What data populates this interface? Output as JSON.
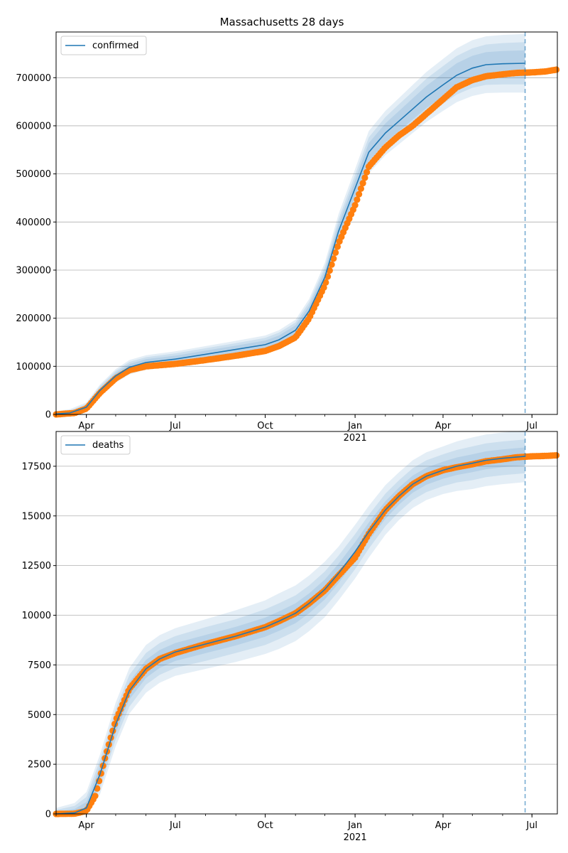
{
  "title": "Massachusetts 28 days",
  "colors": {
    "model": "#1f77b4",
    "observed": "#ff7f0e",
    "band": "#1f77b4",
    "grid": "#b0b0b0"
  },
  "chart_data": [
    {
      "type": "line",
      "title": "Massachusetts 28 days",
      "legend": {
        "entries": [
          "confirmed"
        ],
        "placement": "top-left"
      },
      "grid": "y",
      "xlim": [
        "2020-03-01",
        "2021-07-27"
      ],
      "ylim": [
        0,
        795000
      ],
      "x_ticks": [
        {
          "date": "2020-04-01",
          "label": "Apr"
        },
        {
          "date": "2020-07-01",
          "label": "Jul"
        },
        {
          "date": "2020-10-01",
          "label": "Oct"
        },
        {
          "date": "2021-01-01",
          "label": "Jan",
          "sublabel": "2021"
        },
        {
          "date": "2021-04-01",
          "label": "Apr"
        },
        {
          "date": "2021-07-01",
          "label": "Jul"
        }
      ],
      "y_ticks": [
        0,
        100000,
        200000,
        300000,
        400000,
        500000,
        600000,
        700000
      ],
      "forecast_date": "2021-06-24",
      "series": [
        {
          "name": "confirmed",
          "kind": "model",
          "x": [
            "2020-03-01",
            "2020-03-15",
            "2020-04-01",
            "2020-04-15",
            "2020-05-01",
            "2020-05-15",
            "2020-06-01",
            "2020-07-01",
            "2020-08-01",
            "2020-09-01",
            "2020-10-01",
            "2020-10-15",
            "2020-11-01",
            "2020-11-15",
            "2020-12-01",
            "2020-12-15",
            "2021-01-01",
            "2021-01-15",
            "2021-02-01",
            "2021-02-15",
            "2021-03-01",
            "2021-03-15",
            "2021-04-01",
            "2021-04-15",
            "2021-05-01",
            "2021-05-15",
            "2021-06-01",
            "2021-06-24"
          ],
          "y": [
            1000,
            3000,
            15000,
            50000,
            80000,
            98000,
            108000,
            115000,
            125000,
            135000,
            145000,
            155000,
            175000,
            215000,
            285000,
            380000,
            470000,
            545000,
            585000,
            610000,
            635000,
            660000,
            685000,
            705000,
            720000,
            727000,
            729000,
            730000
          ],
          "band_1": [
            6000,
            8000,
            10000,
            12000,
            14000,
            15000,
            15000,
            16000,
            17000,
            18000,
            19000,
            20000,
            22000,
            25000,
            30000,
            36000,
            40000,
            44000,
            46000,
            48000,
            50000,
            52000,
            54000,
            56000,
            58000,
            59000,
            60000,
            61000
          ],
          "band_2": [
            4000,
            5000,
            7000,
            9000,
            10000,
            11000,
            11000,
            12000,
            12500,
            13000,
            14000,
            15000,
            16000,
            18000,
            21000,
            25000,
            28000,
            31000,
            33000,
            35000,
            36000,
            38000,
            39000,
            40000,
            41000,
            42000,
            43000,
            44000
          ],
          "band_3": [
            2000,
            3000,
            4000,
            5000,
            6000,
            6500,
            7000,
            7000,
            7500,
            8000,
            8500,
            9000,
            10000,
            11000,
            13000,
            15000,
            17000,
            19000,
            20000,
            21000,
            22000,
            23000,
            24000,
            25000,
            25500,
            26000,
            26500,
            27000
          ]
        },
        {
          "name": "observed",
          "kind": "observed",
          "x": [
            "2020-03-01",
            "2020-03-20",
            "2020-04-01",
            "2020-04-15",
            "2020-05-01",
            "2020-05-15",
            "2020-06-01",
            "2020-07-01",
            "2020-08-01",
            "2020-09-01",
            "2020-10-01",
            "2020-10-15",
            "2020-11-01",
            "2020-11-15",
            "2020-12-01",
            "2020-12-15",
            "2021-01-01",
            "2021-01-15",
            "2021-02-01",
            "2021-02-15",
            "2021-03-01",
            "2021-03-15",
            "2021-04-01",
            "2021-04-15",
            "2021-05-01",
            "2021-05-15",
            "2021-06-01",
            "2021-06-15",
            "2021-07-01",
            "2021-07-15",
            "2021-07-27"
          ],
          "y": [
            0,
            3000,
            12000,
            45000,
            75000,
            92000,
            100000,
            105000,
            113000,
            122000,
            132000,
            142000,
            160000,
            200000,
            268000,
            355000,
            435000,
            515000,
            555000,
            580000,
            600000,
            625000,
            655000,
            680000,
            695000,
            703000,
            707000,
            710000,
            711000,
            713000,
            717000
          ]
        }
      ]
    },
    {
      "type": "line",
      "title": "",
      "legend": {
        "entries": [
          "deaths"
        ],
        "placement": "top-left"
      },
      "grid": "y",
      "xlim": [
        "2020-03-01",
        "2021-07-27"
      ],
      "ylim": [
        0,
        19250
      ],
      "x_ticks": [
        {
          "date": "2020-04-01",
          "label": "Apr"
        },
        {
          "date": "2020-07-01",
          "label": "Jul"
        },
        {
          "date": "2020-10-01",
          "label": "Oct"
        },
        {
          "date": "2021-01-01",
          "label": "Jan",
          "sublabel": "2021"
        },
        {
          "date": "2021-04-01",
          "label": "Apr"
        },
        {
          "date": "2021-07-01",
          "label": "Jul"
        }
      ],
      "y_ticks": [
        0,
        2500,
        5000,
        7500,
        10000,
        12500,
        15000,
        17500
      ],
      "forecast_date": "2021-06-24",
      "series": [
        {
          "name": "deaths",
          "kind": "model",
          "x": [
            "2020-03-01",
            "2020-03-20",
            "2020-04-01",
            "2020-04-15",
            "2020-05-01",
            "2020-05-15",
            "2020-06-01",
            "2020-06-15",
            "2020-07-01",
            "2020-08-01",
            "2020-09-01",
            "2020-10-01",
            "2020-10-15",
            "2020-11-01",
            "2020-11-15",
            "2020-12-01",
            "2020-12-15",
            "2021-01-01",
            "2021-01-15",
            "2021-02-01",
            "2021-02-15",
            "2021-03-01",
            "2021-03-15",
            "2021-04-01",
            "2021-04-15",
            "2021-05-01",
            "2021-05-15",
            "2021-06-01",
            "2021-06-24"
          ],
          "y": [
            0,
            50,
            300,
            2000,
            4500,
            6200,
            7300,
            7800,
            8150,
            8550,
            8950,
            9400,
            9700,
            10100,
            10600,
            11300,
            12100,
            13200,
            14200,
            15300,
            16000,
            16600,
            17000,
            17300,
            17500,
            17650,
            17800,
            17900,
            18000
          ],
          "band_1": [
            300,
            500,
            800,
            1000,
            1100,
            1150,
            1200,
            1200,
            1200,
            1250,
            1300,
            1350,
            1400,
            1400,
            1400,
            1400,
            1350,
            1350,
            1300,
            1250,
            1200,
            1200,
            1200,
            1200,
            1250,
            1300,
            1300,
            1300,
            1300
          ],
          "band_2": [
            200,
            350,
            550,
            700,
            750,
            800,
            800,
            800,
            800,
            850,
            850,
            900,
            900,
            900,
            900,
            900,
            900,
            880,
            850,
            820,
            800,
            800,
            800,
            800,
            820,
            850,
            850,
            850,
            850
          ],
          "band_3": [
            100,
            200,
            300,
            400,
            420,
            440,
            450,
            450,
            450,
            460,
            470,
            480,
            490,
            500,
            500,
            500,
            490,
            480,
            460,
            440,
            430,
            430,
            430,
            430,
            440,
            450,
            450,
            450,
            450
          ]
        },
        {
          "name": "observed",
          "kind": "observed",
          "x": [
            "2020-03-01",
            "2020-03-20",
            "2020-04-01",
            "2020-04-10",
            "2020-04-20",
            "2020-05-01",
            "2020-05-15",
            "2020-06-01",
            "2020-06-15",
            "2020-07-01",
            "2020-08-01",
            "2020-09-01",
            "2020-10-01",
            "2020-10-15",
            "2020-11-01",
            "2020-11-15",
            "2020-12-01",
            "2020-12-15",
            "2021-01-01",
            "2021-01-15",
            "2021-02-01",
            "2021-02-15",
            "2021-03-01",
            "2021-03-15",
            "2021-04-01",
            "2021-04-15",
            "2021-05-01",
            "2021-05-15",
            "2021-06-01",
            "2021-06-15",
            "2021-07-01",
            "2021-07-15",
            "2021-07-27"
          ],
          "y": [
            0,
            10,
            150,
            900,
            2800,
            4700,
            6300,
            7300,
            7800,
            8100,
            8550,
            8950,
            9400,
            9700,
            10100,
            10600,
            11250,
            12000,
            12900,
            14100,
            15300,
            16000,
            16600,
            17000,
            17300,
            17450,
            17600,
            17750,
            17850,
            17950,
            18000,
            18020,
            18050
          ]
        }
      ]
    }
  ]
}
